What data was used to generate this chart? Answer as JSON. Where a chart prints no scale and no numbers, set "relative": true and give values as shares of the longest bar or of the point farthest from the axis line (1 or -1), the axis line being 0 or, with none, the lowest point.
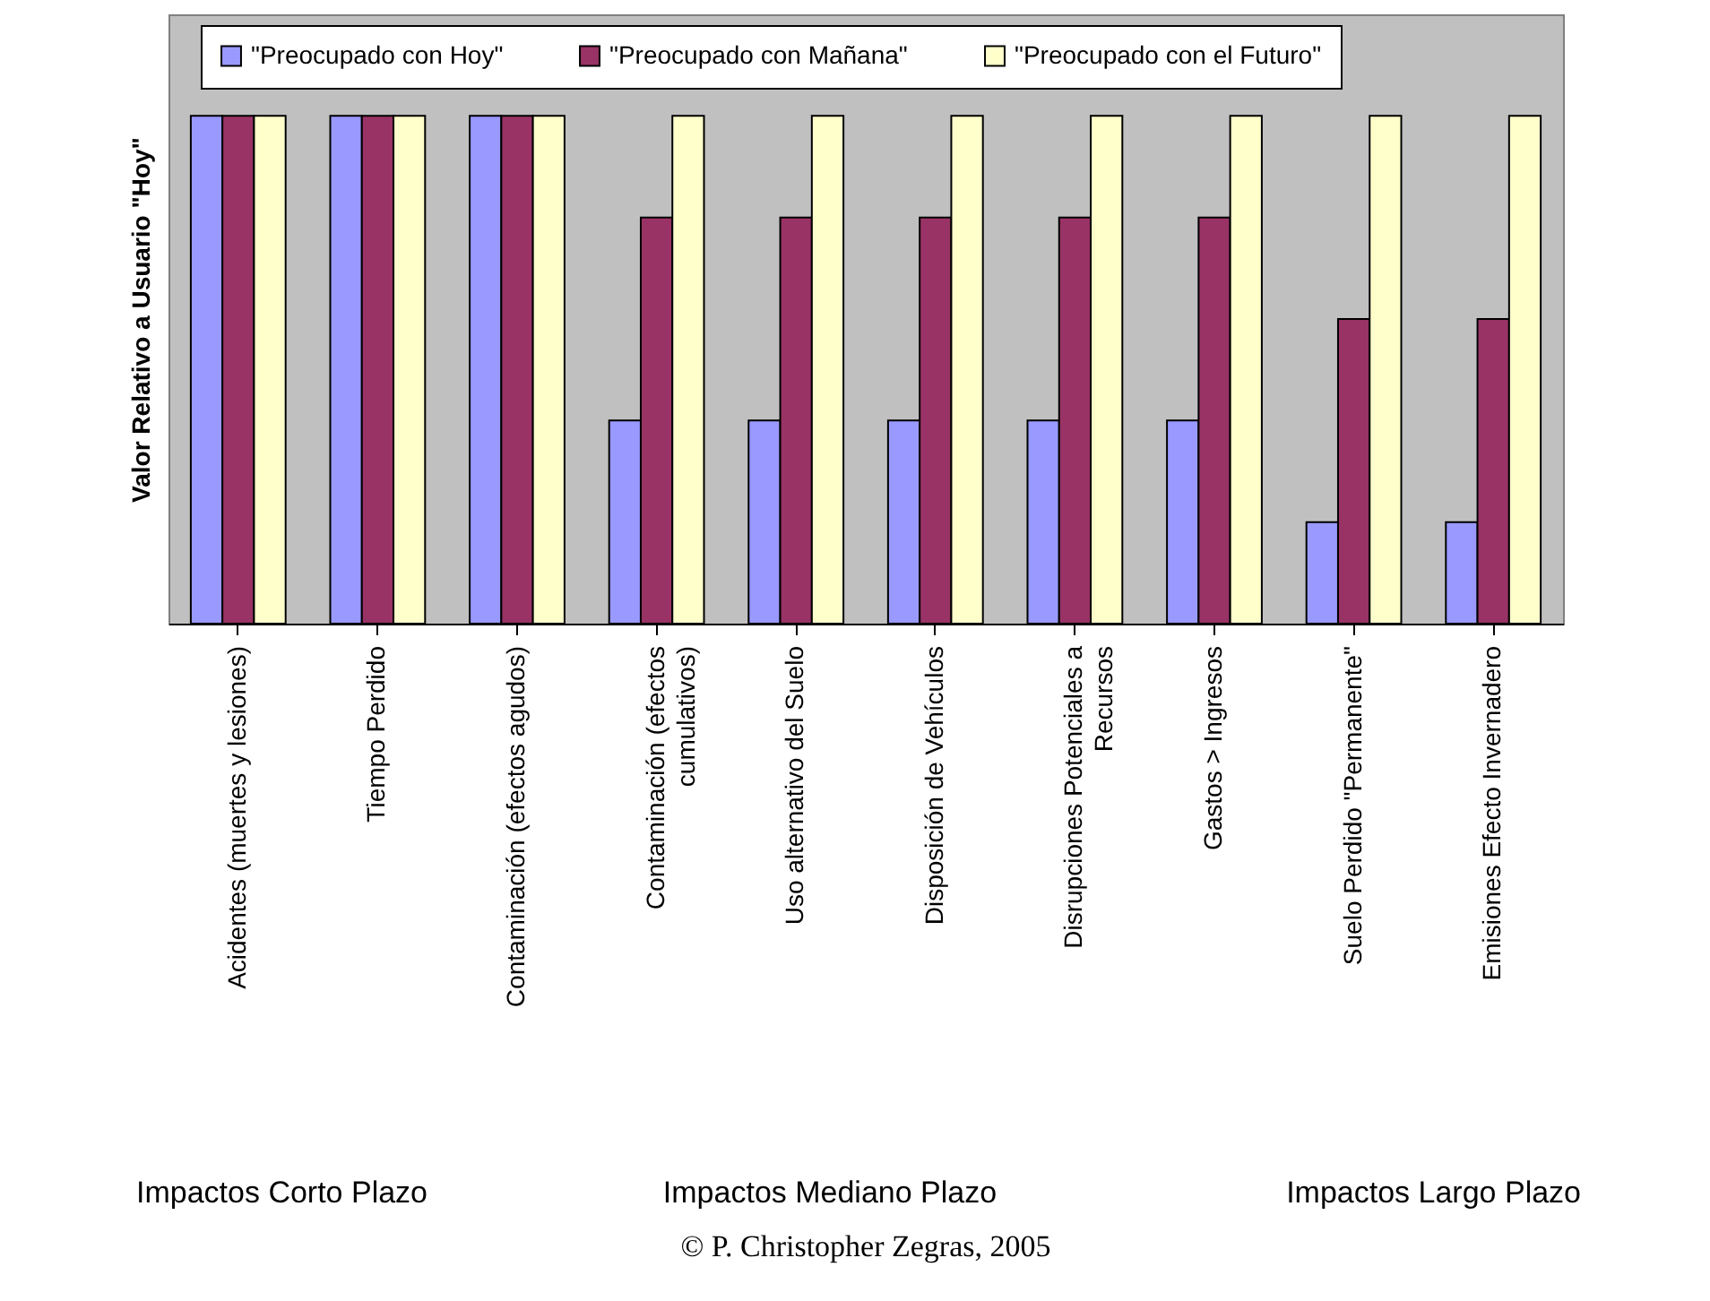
{
  "chart_data": {
    "type": "bar",
    "relative": true,
    "ylabel": "Valor Relativo a Usuario \"Hoy\"",
    "categories": [
      "Acidentes (muertes y lesiones)",
      "Tiempo Perdido",
      "Contaminación (efectos agudos)",
      "Contaminación (efectos\ncumulativos)",
      "Uso alternativo del Suelo",
      "Disposición de Vehículos",
      "Disrupciones Potenciales a\nRecursos",
      "Gastos > Ingresos",
      "Suelo Perdido \"Permanente\"",
      "Emisiones Efecto Invernadero"
    ],
    "series": [
      {
        "name": "\"Preocupado con Hoy\"",
        "color": "#9999ff",
        "values": [
          1,
          1,
          1,
          0.4,
          0.4,
          0.4,
          0.4,
          0.4,
          0.2,
          0.2
        ]
      },
      {
        "name": "\"Preocupado con Mañana\"",
        "color": "#993366",
        "values": [
          1,
          1,
          1,
          0.8,
          0.8,
          0.8,
          0.8,
          0.8,
          0.6,
          0.6
        ]
      },
      {
        "name": "\"Preocupado con el Futuro\"",
        "color": "#ffffcc",
        "values": [
          1,
          1,
          1,
          1,
          1,
          1,
          1,
          1,
          1,
          1
        ]
      }
    ],
    "legend": "top",
    "grid": false,
    "tick_labels": "x",
    "annotations": [
      "Impactos Corto Plazo",
      "Impactos Mediano Plazo",
      "Impactos Largo Plazo",
      "© P. Christopher Zegras, 2005"
    ]
  }
}
